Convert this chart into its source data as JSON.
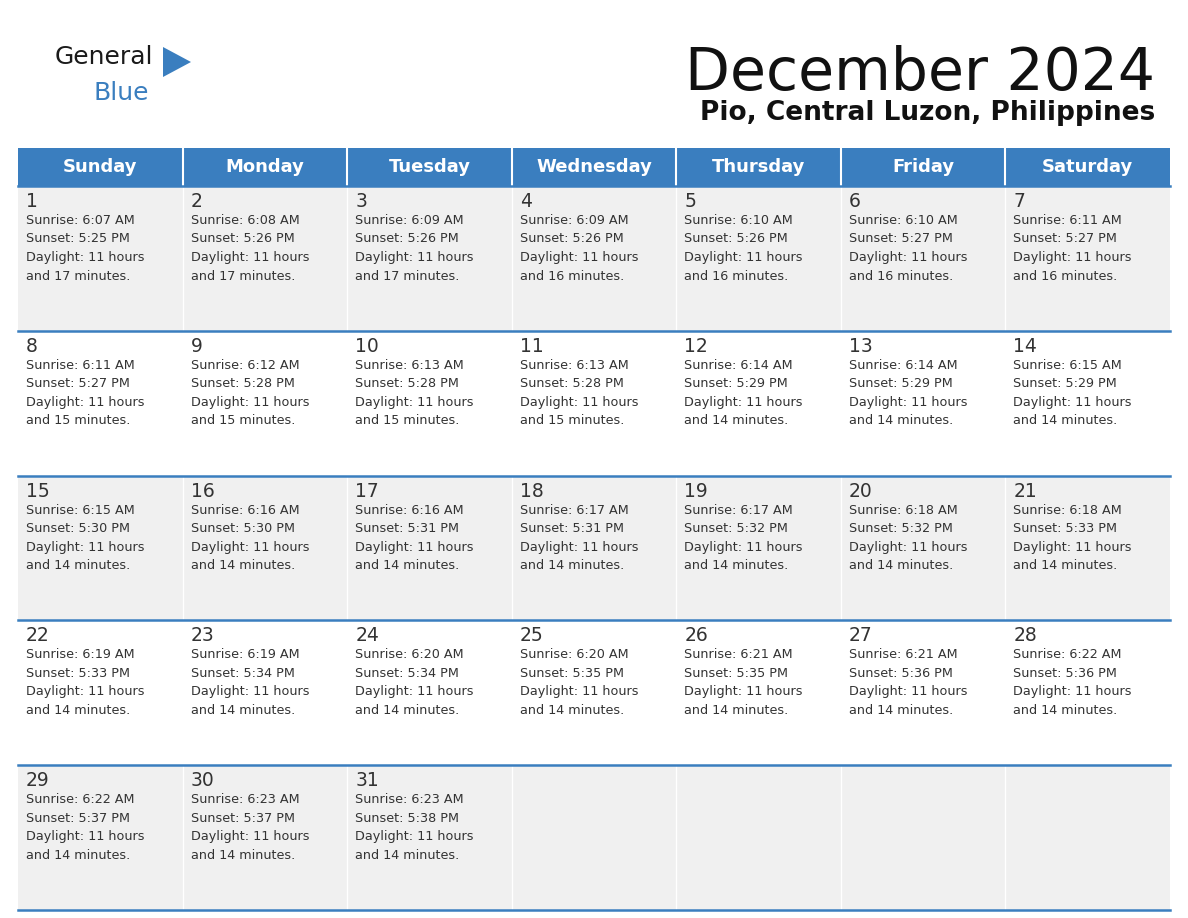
{
  "title": "December 2024",
  "subtitle": "Pio, Central Luzon, Philippines",
  "days_of_week": [
    "Sunday",
    "Monday",
    "Tuesday",
    "Wednesday",
    "Thursday",
    "Friday",
    "Saturday"
  ],
  "header_bg": "#3A7EBF",
  "header_text": "#FFFFFF",
  "row_bg_odd": "#F0F0F0",
  "row_bg_even": "#FFFFFF",
  "cell_border_color": "#3A7EBF",
  "text_color": "#333333",
  "weeks": [
    [
      {
        "day": 1,
        "sunrise": "6:07 AM",
        "sunset": "5:25 PM",
        "daylight": "11 hours and 17 minutes"
      },
      {
        "day": 2,
        "sunrise": "6:08 AM",
        "sunset": "5:26 PM",
        "daylight": "11 hours and 17 minutes"
      },
      {
        "day": 3,
        "sunrise": "6:09 AM",
        "sunset": "5:26 PM",
        "daylight": "11 hours and 17 minutes"
      },
      {
        "day": 4,
        "sunrise": "6:09 AM",
        "sunset": "5:26 PM",
        "daylight": "11 hours and 16 minutes"
      },
      {
        "day": 5,
        "sunrise": "6:10 AM",
        "sunset": "5:26 PM",
        "daylight": "11 hours and 16 minutes"
      },
      {
        "day": 6,
        "sunrise": "6:10 AM",
        "sunset": "5:27 PM",
        "daylight": "11 hours and 16 minutes"
      },
      {
        "day": 7,
        "sunrise": "6:11 AM",
        "sunset": "5:27 PM",
        "daylight": "11 hours and 16 minutes"
      }
    ],
    [
      {
        "day": 8,
        "sunrise": "6:11 AM",
        "sunset": "5:27 PM",
        "daylight": "11 hours and 15 minutes"
      },
      {
        "day": 9,
        "sunrise": "6:12 AM",
        "sunset": "5:28 PM",
        "daylight": "11 hours and 15 minutes"
      },
      {
        "day": 10,
        "sunrise": "6:13 AM",
        "sunset": "5:28 PM",
        "daylight": "11 hours and 15 minutes"
      },
      {
        "day": 11,
        "sunrise": "6:13 AM",
        "sunset": "5:28 PM",
        "daylight": "11 hours and 15 minutes"
      },
      {
        "day": 12,
        "sunrise": "6:14 AM",
        "sunset": "5:29 PM",
        "daylight": "11 hours and 14 minutes"
      },
      {
        "day": 13,
        "sunrise": "6:14 AM",
        "sunset": "5:29 PM",
        "daylight": "11 hours and 14 minutes"
      },
      {
        "day": 14,
        "sunrise": "6:15 AM",
        "sunset": "5:29 PM",
        "daylight": "11 hours and 14 minutes"
      }
    ],
    [
      {
        "day": 15,
        "sunrise": "6:15 AM",
        "sunset": "5:30 PM",
        "daylight": "11 hours and 14 minutes"
      },
      {
        "day": 16,
        "sunrise": "6:16 AM",
        "sunset": "5:30 PM",
        "daylight": "11 hours and 14 minutes"
      },
      {
        "day": 17,
        "sunrise": "6:16 AM",
        "sunset": "5:31 PM",
        "daylight": "11 hours and 14 minutes"
      },
      {
        "day": 18,
        "sunrise": "6:17 AM",
        "sunset": "5:31 PM",
        "daylight": "11 hours and 14 minutes"
      },
      {
        "day": 19,
        "sunrise": "6:17 AM",
        "sunset": "5:32 PM",
        "daylight": "11 hours and 14 minutes"
      },
      {
        "day": 20,
        "sunrise": "6:18 AM",
        "sunset": "5:32 PM",
        "daylight": "11 hours and 14 minutes"
      },
      {
        "day": 21,
        "sunrise": "6:18 AM",
        "sunset": "5:33 PM",
        "daylight": "11 hours and 14 minutes"
      }
    ],
    [
      {
        "day": 22,
        "sunrise": "6:19 AM",
        "sunset": "5:33 PM",
        "daylight": "11 hours and 14 minutes"
      },
      {
        "day": 23,
        "sunrise": "6:19 AM",
        "sunset": "5:34 PM",
        "daylight": "11 hours and 14 minutes"
      },
      {
        "day": 24,
        "sunrise": "6:20 AM",
        "sunset": "5:34 PM",
        "daylight": "11 hours and 14 minutes"
      },
      {
        "day": 25,
        "sunrise": "6:20 AM",
        "sunset": "5:35 PM",
        "daylight": "11 hours and 14 minutes"
      },
      {
        "day": 26,
        "sunrise": "6:21 AM",
        "sunset": "5:35 PM",
        "daylight": "11 hours and 14 minutes"
      },
      {
        "day": 27,
        "sunrise": "6:21 AM",
        "sunset": "5:36 PM",
        "daylight": "11 hours and 14 minutes"
      },
      {
        "day": 28,
        "sunrise": "6:22 AM",
        "sunset": "5:36 PM",
        "daylight": "11 hours and 14 minutes"
      }
    ],
    [
      {
        "day": 29,
        "sunrise": "6:22 AM",
        "sunset": "5:37 PM",
        "daylight": "11 hours and 14 minutes"
      },
      {
        "day": 30,
        "sunrise": "6:23 AM",
        "sunset": "5:37 PM",
        "daylight": "11 hours and 14 minutes"
      },
      {
        "day": 31,
        "sunrise": "6:23 AM",
        "sunset": "5:38 PM",
        "daylight": "11 hours and 14 minutes"
      },
      null,
      null,
      null,
      null
    ]
  ]
}
